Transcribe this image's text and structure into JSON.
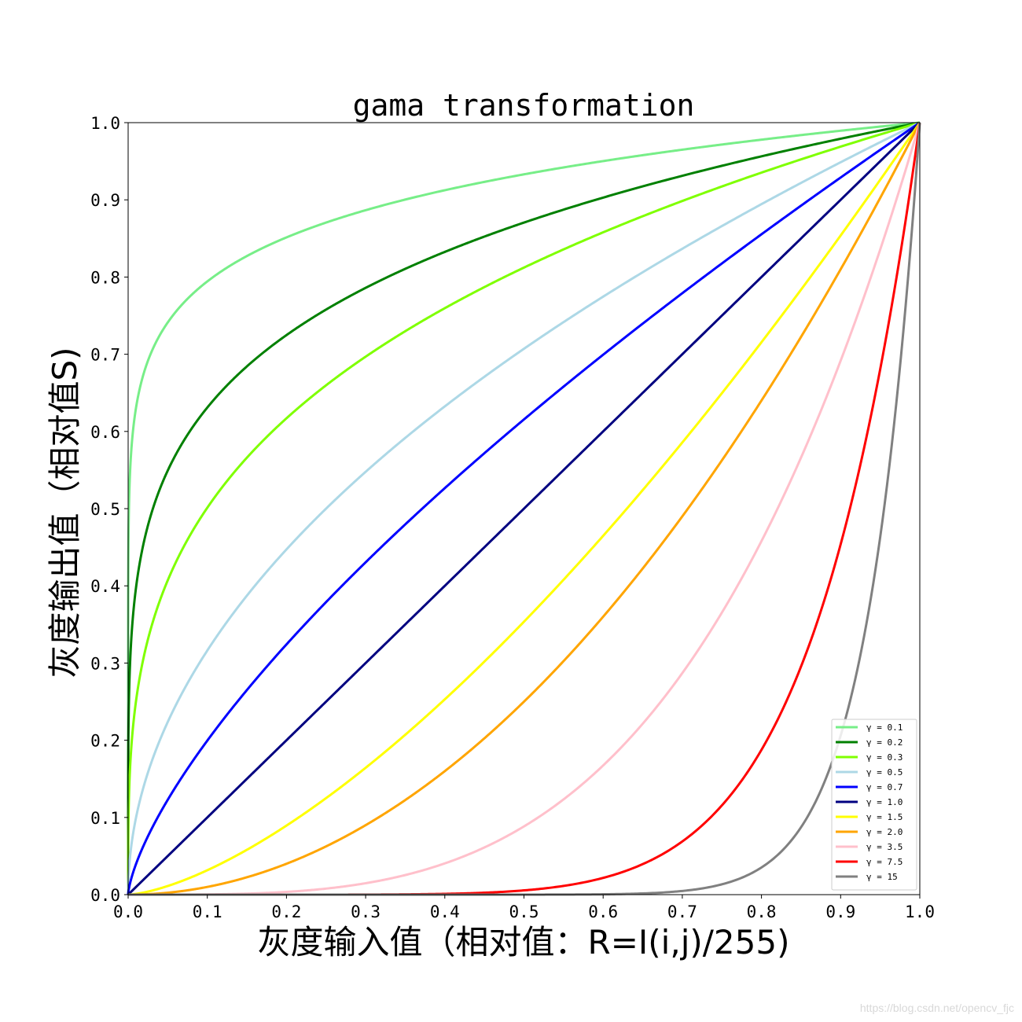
{
  "chart_data": {
    "type": "line",
    "title": "gama transformation",
    "xlabel": "灰度输入值（相对值：R=I(i,j)/255)",
    "ylabel": "灰度输出值（相对值S)",
    "xlim": [
      0.0,
      1.0
    ],
    "ylim": [
      0.0,
      1.0
    ],
    "x_ticks": [
      "0.0",
      "0.1",
      "0.2",
      "0.3",
      "0.4",
      "0.5",
      "0.6",
      "0.7",
      "0.8",
      "0.9",
      "1.0"
    ],
    "y_ticks": [
      "0.0",
      "0.1",
      "0.2",
      "0.3",
      "0.4",
      "0.5",
      "0.6",
      "0.7",
      "0.8",
      "0.9",
      "1.0"
    ],
    "grid": false,
    "legend_position": "lower right",
    "x": [
      0.0,
      0.05,
      0.1,
      0.15,
      0.2,
      0.25,
      0.3,
      0.35,
      0.4,
      0.45,
      0.5,
      0.55,
      0.6,
      0.65,
      0.7,
      0.75,
      0.8,
      0.85,
      0.9,
      0.95,
      1.0
    ],
    "series": [
      {
        "name": "γ = 0.1",
        "gamma": 0.1,
        "color": "#77ee88",
        "values": [
          0.0,
          0.741,
          0.794,
          0.827,
          0.851,
          0.871,
          0.887,
          0.9,
          0.912,
          0.923,
          0.933,
          0.942,
          0.95,
          0.958,
          0.965,
          0.972,
          0.978,
          0.984,
          0.99,
          0.995,
          1.0
        ]
      },
      {
        "name": "γ = 0.2",
        "gamma": 0.2,
        "color": "#008000",
        "values": [
          0.0,
          0.549,
          0.631,
          0.684,
          0.725,
          0.758,
          0.786,
          0.811,
          0.833,
          0.852,
          0.871,
          0.887,
          0.903,
          0.918,
          0.931,
          0.944,
          0.956,
          0.968,
          0.979,
          0.99,
          1.0
        ]
      },
      {
        "name": "γ = 0.3",
        "gamma": 0.3,
        "color": "#7fff00",
        "values": [
          0.0,
          0.407,
          0.501,
          0.566,
          0.617,
          0.66,
          0.697,
          0.73,
          0.76,
          0.787,
          0.812,
          0.836,
          0.858,
          0.879,
          0.899,
          0.917,
          0.935,
          0.953,
          0.969,
          0.985,
          1.0
        ]
      },
      {
        "name": "γ = 0.5",
        "gamma": 0.5,
        "color": "#add8e6",
        "values": [
          0.0,
          0.224,
          0.316,
          0.387,
          0.447,
          0.5,
          0.548,
          0.592,
          0.632,
          0.671,
          0.707,
          0.742,
          0.775,
          0.806,
          0.837,
          0.866,
          0.894,
          0.922,
          0.949,
          0.975,
          1.0
        ]
      },
      {
        "name": "γ = 0.7",
        "gamma": 0.7,
        "color": "#0000ff",
        "values": [
          0.0,
          0.123,
          0.2,
          0.265,
          0.324,
          0.379,
          0.431,
          0.48,
          0.527,
          0.572,
          0.616,
          0.658,
          0.699,
          0.74,
          0.779,
          0.818,
          0.855,
          0.892,
          0.929,
          0.965,
          1.0
        ]
      },
      {
        "name": "γ = 1.0",
        "gamma": 1.0,
        "color": "#000080",
        "values": [
          0.0,
          0.05,
          0.1,
          0.15,
          0.2,
          0.25,
          0.3,
          0.35,
          0.4,
          0.45,
          0.5,
          0.55,
          0.6,
          0.65,
          0.7,
          0.75,
          0.8,
          0.85,
          0.9,
          0.95,
          1.0
        ]
      },
      {
        "name": "γ = 1.5",
        "gamma": 1.5,
        "color": "#ffff00",
        "values": [
          0.0,
          0.011,
          0.032,
          0.058,
          0.089,
          0.125,
          0.164,
          0.207,
          0.253,
          0.302,
          0.354,
          0.408,
          0.465,
          0.524,
          0.586,
          0.65,
          0.716,
          0.784,
          0.854,
          0.926,
          1.0
        ]
      },
      {
        "name": "γ = 2.0",
        "gamma": 2.0,
        "color": "#ffa500",
        "values": [
          0.0,
          0.003,
          0.01,
          0.023,
          0.04,
          0.063,
          0.09,
          0.123,
          0.16,
          0.203,
          0.25,
          0.303,
          0.36,
          0.423,
          0.49,
          0.563,
          0.64,
          0.723,
          0.81,
          0.903,
          1.0
        ]
      },
      {
        "name": "γ = 3.5",
        "gamma": 3.5,
        "color": "#ffc0cb",
        "values": [
          0.0,
          0.0,
          0.0,
          0.001,
          0.004,
          0.008,
          0.015,
          0.025,
          0.041,
          0.061,
          0.088,
          0.123,
          0.167,
          0.221,
          0.287,
          0.365,
          0.458,
          0.566,
          0.692,
          0.836,
          1.0
        ]
      },
      {
        "name": "γ = 7.5",
        "gamma": 7.5,
        "color": "#ff0000",
        "values": [
          0.0,
          0.0,
          0.0,
          0.0,
          0.0,
          0.0,
          0.0,
          0.0,
          0.001,
          0.003,
          0.006,
          0.011,
          0.022,
          0.04,
          0.069,
          0.116,
          0.188,
          0.296,
          0.454,
          0.681,
          1.0
        ]
      },
      {
        "name": "γ = 15",
        "gamma": 15,
        "color": "#808080",
        "values": [
          0.0,
          0.0,
          0.0,
          0.0,
          0.0,
          0.0,
          0.0,
          0.0,
          0.0,
          0.0,
          0.0,
          0.0,
          0.0,
          0.002,
          0.005,
          0.013,
          0.035,
          0.087,
          0.206,
          0.463,
          1.0
        ]
      }
    ]
  },
  "watermark": "https://blog.csdn.net/opencv_fjc"
}
